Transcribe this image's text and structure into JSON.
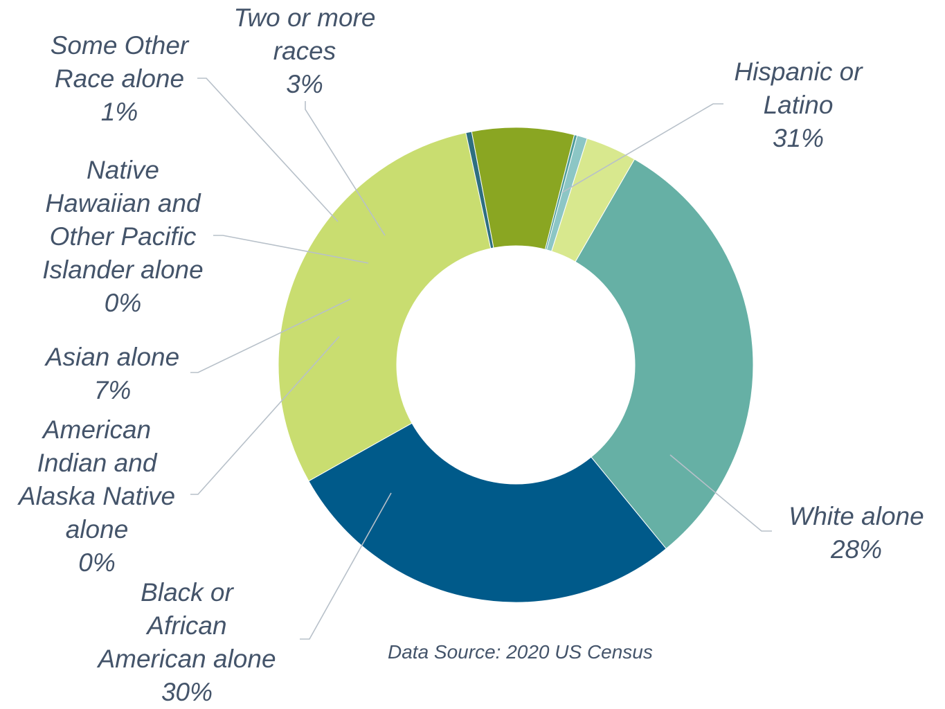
{
  "chart_data": {
    "type": "pie",
    "donut": true,
    "legend": "none",
    "source_note": "Data Source: 2020 US Census",
    "slices": [
      {
        "name": "Hispanic or Latino",
        "name_lines": [
          "Hispanic or",
          "Latino"
        ],
        "value": 31,
        "percent_label": "31%",
        "color": "#66b0a5"
      },
      {
        "name": "White alone",
        "name_lines": [
          "White alone"
        ],
        "value": 28,
        "percent_label": "28%",
        "color": "#005a8a"
      },
      {
        "name": "Black or African American alone",
        "name_lines": [
          "Black or",
          "African",
          "American alone"
        ],
        "value": 30,
        "percent_label": "30%",
        "color": "#c9dd70"
      },
      {
        "name": "American Indian and Alaska Native alone",
        "name_lines": [
          "American",
          "Indian and",
          "Alaska Native",
          "alone"
        ],
        "value": 0.4,
        "percent_label": "0%",
        "color": "#2e6f80"
      },
      {
        "name": "Asian alone",
        "name_lines": [
          "Asian alone"
        ],
        "value": 7,
        "percent_label": "7%",
        "color": "#8aa622"
      },
      {
        "name": "Native Hawaiian and Other Pacific Islander alone",
        "name_lines": [
          "Native",
          "Hawaiian and",
          "Other Pacific",
          "Islander alone"
        ],
        "value": 0.2,
        "percent_label": "0%",
        "color": "#4e9c9a"
      },
      {
        "name": "Some Other Race alone",
        "name_lines": [
          "Some Other",
          "Race alone"
        ],
        "value": 0.7,
        "percent_label": "1%",
        "color": "#8cc6c5"
      },
      {
        "name": "Two or more races",
        "name_lines": [
          "Two or more",
          "races"
        ],
        "value": 3.5,
        "percent_label": "3%",
        "color": "#d8e88e"
      }
    ]
  },
  "colors": {
    "label_text": "#44546a",
    "leader_line": "#b7c0c9"
  }
}
